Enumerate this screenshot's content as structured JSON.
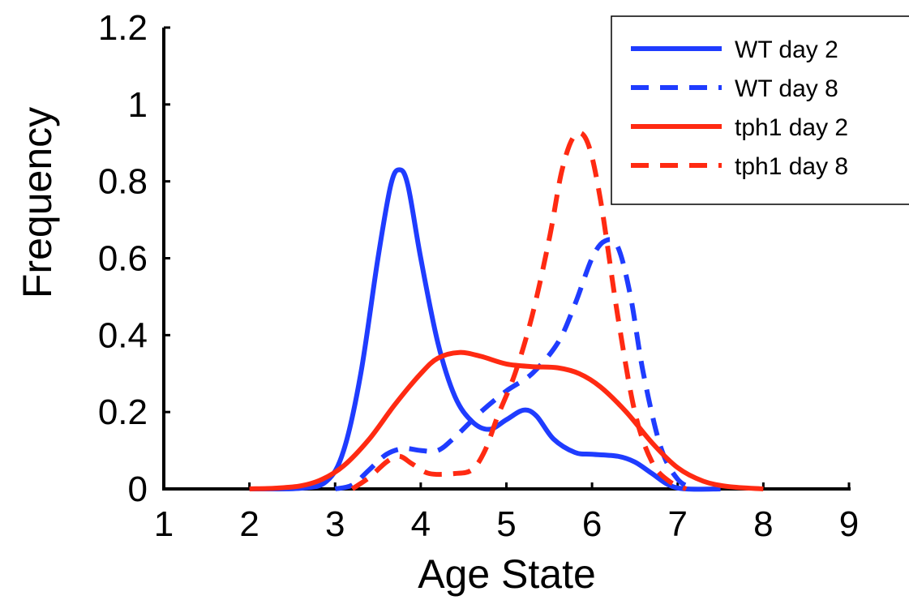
{
  "chart_data": {
    "type": "line",
    "title": "",
    "xlabel": "Age State",
    "ylabel": "Frequency",
    "xlim": [
      1,
      9
    ],
    "ylim": [
      0,
      1.2
    ],
    "x_ticks": [
      1,
      2,
      3,
      4,
      5,
      6,
      7,
      8,
      9
    ],
    "y_ticks": [
      0,
      0.2,
      0.4,
      0.6,
      0.8,
      1,
      1.2
    ],
    "x_tick_labels": [
      "1",
      "2",
      "3",
      "4",
      "5",
      "6",
      "7",
      "8",
      "9"
    ],
    "y_tick_labels": [
      "0",
      "0.2",
      "0.4",
      "0.6",
      "0.8",
      "1",
      "1.2"
    ],
    "grid": false,
    "legend_position": "top-right",
    "series": [
      {
        "name": "WT day 2",
        "color": "#1f3cff",
        "dash": "solid",
        "points": [
          [
            2.0,
            0
          ],
          [
            2.6,
            0.002
          ],
          [
            2.9,
            0.02
          ],
          [
            3.1,
            0.1
          ],
          [
            3.3,
            0.3
          ],
          [
            3.5,
            0.6
          ],
          [
            3.65,
            0.79
          ],
          [
            3.75,
            0.83
          ],
          [
            3.85,
            0.79
          ],
          [
            4.0,
            0.6
          ],
          [
            4.2,
            0.38
          ],
          [
            4.4,
            0.24
          ],
          [
            4.6,
            0.175
          ],
          [
            4.8,
            0.155
          ],
          [
            5.0,
            0.18
          ],
          [
            5.2,
            0.205
          ],
          [
            5.35,
            0.19
          ],
          [
            5.55,
            0.13
          ],
          [
            5.8,
            0.095
          ],
          [
            6.0,
            0.09
          ],
          [
            6.3,
            0.085
          ],
          [
            6.5,
            0.07
          ],
          [
            6.7,
            0.04
          ],
          [
            6.9,
            0.01
          ],
          [
            7.1,
            0.0
          ],
          [
            7.5,
            0
          ]
        ]
      },
      {
        "name": "WT day 8",
        "color": "#1f3cff",
        "dash": "dashed",
        "points": [
          [
            3.0,
            0
          ],
          [
            3.2,
            0.01
          ],
          [
            3.4,
            0.05
          ],
          [
            3.6,
            0.09
          ],
          [
            3.8,
            0.105
          ],
          [
            4.0,
            0.1
          ],
          [
            4.2,
            0.1
          ],
          [
            4.4,
            0.135
          ],
          [
            4.7,
            0.2
          ],
          [
            5.0,
            0.255
          ],
          [
            5.3,
            0.3
          ],
          [
            5.6,
            0.38
          ],
          [
            5.8,
            0.48
          ],
          [
            6.0,
            0.6
          ],
          [
            6.15,
            0.645
          ],
          [
            6.3,
            0.63
          ],
          [
            6.45,
            0.5
          ],
          [
            6.6,
            0.3
          ],
          [
            6.8,
            0.11
          ],
          [
            7.0,
            0.025
          ],
          [
            7.2,
            0
          ]
        ]
      },
      {
        "name": "tph1 day 2",
        "color": "#ff2a12",
        "dash": "solid",
        "points": [
          [
            2.0,
            0
          ],
          [
            2.3,
            0.002
          ],
          [
            2.6,
            0.008
          ],
          [
            2.85,
            0.025
          ],
          [
            3.1,
            0.06
          ],
          [
            3.4,
            0.13
          ],
          [
            3.7,
            0.22
          ],
          [
            4.0,
            0.3
          ],
          [
            4.2,
            0.34
          ],
          [
            4.45,
            0.355
          ],
          [
            4.7,
            0.345
          ],
          [
            5.0,
            0.325
          ],
          [
            5.3,
            0.318
          ],
          [
            5.6,
            0.315
          ],
          [
            5.85,
            0.3
          ],
          [
            6.1,
            0.265
          ],
          [
            6.4,
            0.2
          ],
          [
            6.7,
            0.12
          ],
          [
            7.0,
            0.055
          ],
          [
            7.3,
            0.02
          ],
          [
            7.6,
            0.006
          ],
          [
            8.0,
            0
          ]
        ]
      },
      {
        "name": "tph1 day 8",
        "color": "#ff2a12",
        "dash": "dashed",
        "points": [
          [
            3.2,
            0
          ],
          [
            3.4,
            0.03
          ],
          [
            3.6,
            0.07
          ],
          [
            3.75,
            0.085
          ],
          [
            3.9,
            0.065
          ],
          [
            4.1,
            0.04
          ],
          [
            4.4,
            0.04
          ],
          [
            4.6,
            0.05
          ],
          [
            4.75,
            0.1
          ],
          [
            4.9,
            0.19
          ],
          [
            5.1,
            0.3
          ],
          [
            5.3,
            0.45
          ],
          [
            5.5,
            0.65
          ],
          [
            5.65,
            0.83
          ],
          [
            5.8,
            0.92
          ],
          [
            5.95,
            0.9
          ],
          [
            6.1,
            0.75
          ],
          [
            6.3,
            0.45
          ],
          [
            6.5,
            0.2
          ],
          [
            6.7,
            0.07
          ],
          [
            6.9,
            0.02
          ],
          [
            7.1,
            0
          ]
        ]
      }
    ]
  }
}
